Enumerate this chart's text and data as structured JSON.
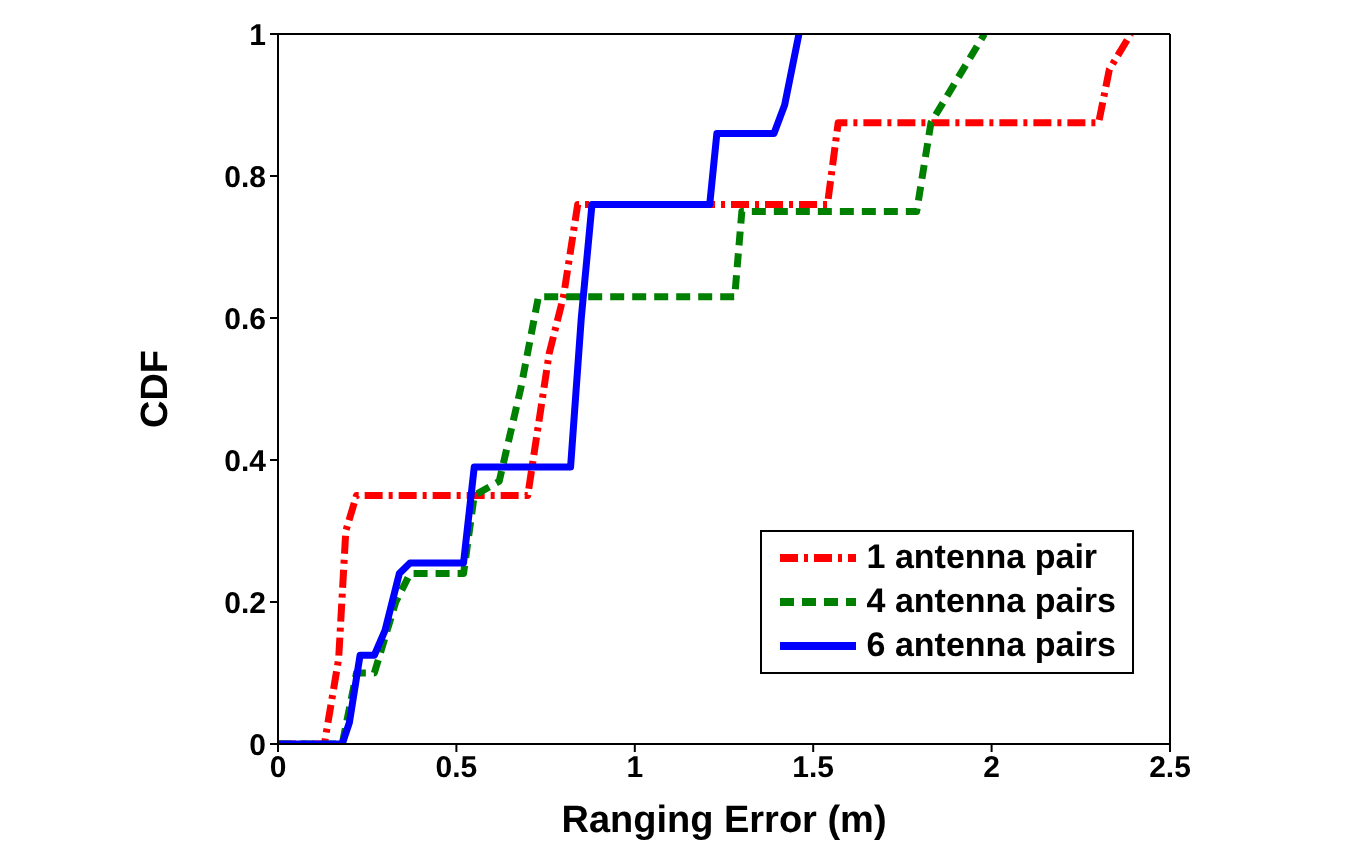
{
  "chart_data": {
    "type": "line",
    "xlabel": "Ranging Error (m)",
    "ylabel": "CDF",
    "xlim": [
      0,
      2.5
    ],
    "xticks": [
      0,
      0.5,
      1,
      1.5,
      2,
      2.5
    ],
    "ylim": [
      0,
      1
    ],
    "yticks": [
      0,
      0.2,
      0.4,
      0.6,
      0.8,
      1
    ],
    "legend": "bottom right",
    "marker": "none",
    "series": [
      {
        "name": "1 antenna pair",
        "color": "#ff0000",
        "line_style": "dashdot",
        "x": [
          0,
          0.13,
          0.17,
          0.19,
          0.22,
          0.7,
          0.73,
          0.76,
          0.8,
          0.84,
          1.54,
          1.57,
          2.3,
          2.33,
          2.39
        ],
        "values": [
          0,
          0,
          0.12,
          0.3,
          0.35,
          0.35,
          0.45,
          0.55,
          0.63,
          0.76,
          0.76,
          0.875,
          0.875,
          0.95,
          1
        ]
      },
      {
        "name": "4 antenna pairs",
        "color": "#008000",
        "line_style": "dashed",
        "x": [
          0,
          0.18,
          0.22,
          0.27,
          0.33,
          0.37,
          0.52,
          0.55,
          0.62,
          0.68,
          0.73,
          1.28,
          1.3,
          1.79,
          1.83,
          1.98
        ],
        "values": [
          0,
          0,
          0.1,
          0.1,
          0.2,
          0.24,
          0.24,
          0.35,
          0.37,
          0.5,
          0.63,
          0.63,
          0.75,
          0.75,
          0.875,
          1
        ]
      },
      {
        "name": "6 antenna pairs",
        "color": "#0000ff",
        "line_style": "solid",
        "x": [
          0,
          0.18,
          0.2,
          0.23,
          0.27,
          0.3,
          0.34,
          0.37,
          0.52,
          0.55,
          0.82,
          0.85,
          0.88,
          1.21,
          1.23,
          1.39,
          1.42,
          1.46
        ],
        "values": [
          0,
          0,
          0.03,
          0.125,
          0.125,
          0.16,
          0.24,
          0.255,
          0.255,
          0.39,
          0.39,
          0.6,
          0.76,
          0.76,
          0.86,
          0.86,
          0.9,
          1
        ]
      }
    ]
  }
}
